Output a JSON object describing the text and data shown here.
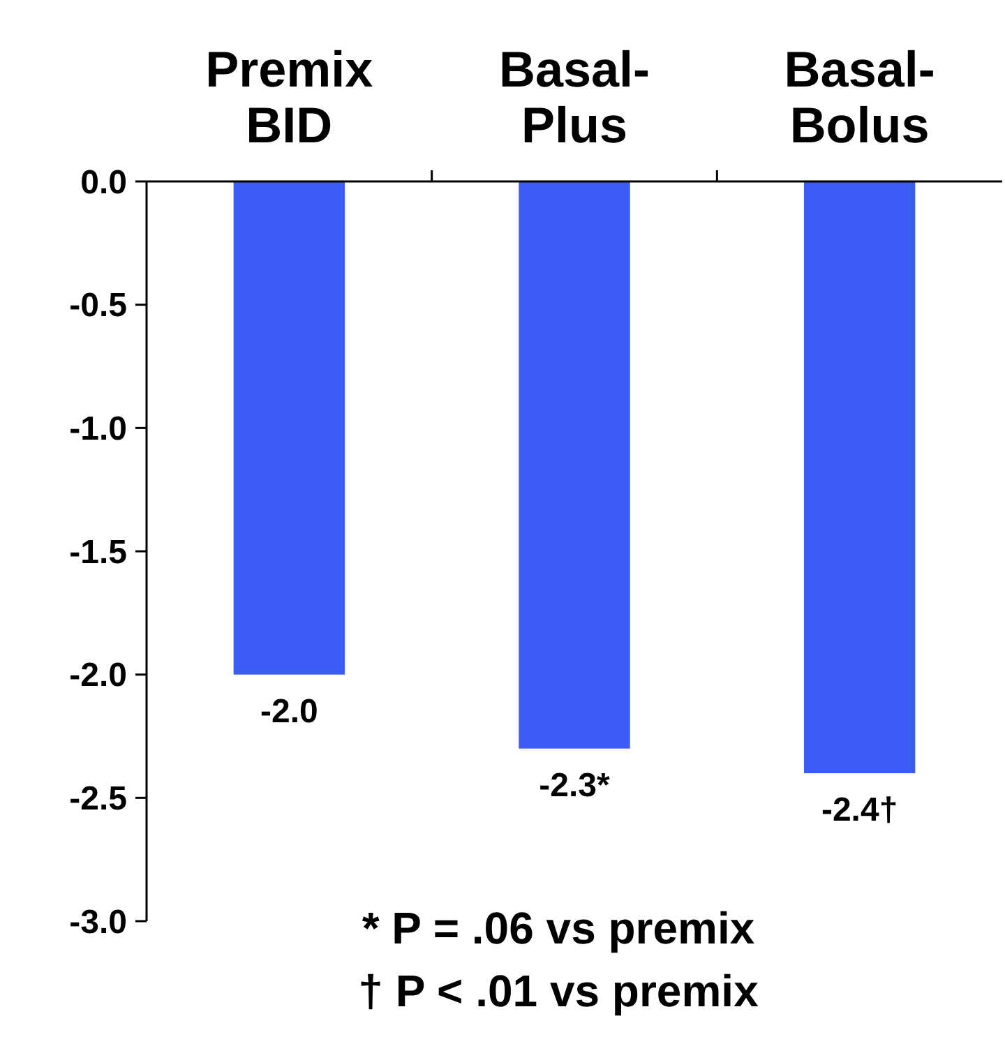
{
  "chart_data": {
    "type": "bar",
    "categories": [
      "Premix\nBID",
      "Basal-\nPlus",
      "Basal-\nBolus"
    ],
    "values": [
      -2.0,
      -2.3,
      -2.4
    ],
    "color": "#3c5cf6",
    "value_labels": [
      "-2.0",
      "-2.3*",
      "-2.4†"
    ],
    "ylim": [
      -3,
      0
    ],
    "yticks": [
      {
        "value": 0,
        "label": "0.0"
      },
      {
        "value": -0.5,
        "label": "-0.5"
      },
      {
        "value": -1,
        "label": "-1.0"
      },
      {
        "value": -1.5,
        "label": "-1.5"
      },
      {
        "value": -2,
        "label": "-2.0"
      },
      {
        "value": -2.5,
        "label": "-2.5"
      },
      {
        "value": -3,
        "label": "-3.0"
      }
    ],
    "grid": false,
    "annotations": [
      "* P = .06 vs premix",
      "† P < .01 vs premix"
    ]
  }
}
